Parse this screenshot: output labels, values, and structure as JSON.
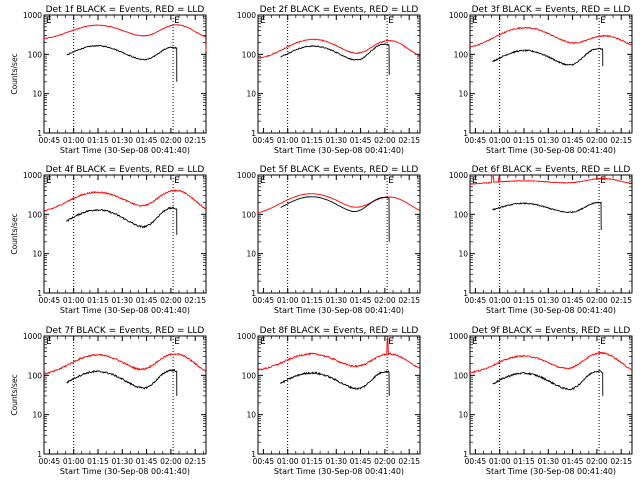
{
  "common": {
    "xlabel": "Start Time (30-Sep-08 00:41:40)",
    "ylabel": "Counts/sec",
    "xticks": [
      "00:45",
      "01:00",
      "01:15",
      "01:30",
      "01:45",
      "02:00",
      "02:15"
    ],
    "yticks": [
      "1",
      "10",
      "100",
      "1000"
    ],
    "tick_minutes": [
      3.33,
      18.33,
      33.33,
      48.33,
      63.33,
      78.33,
      93.33
    ],
    "xlim_minutes": [
      0,
      100
    ],
    "ylim": [
      1,
      1000
    ],
    "yscale": "log",
    "marker_lines_minutes": [
      18.3,
      79.7
    ],
    "edge_marker_label": "E",
    "colors": {
      "events": "#000000",
      "lld": "#ff0000"
    }
  },
  "chart_data": [
    {
      "type": "line",
      "title": "Det 1f BLACK = Events, RED = LLD",
      "show_ylabel": true,
      "series": [
        {
          "name": "LLD",
          "color": "#ff0000",
          "start": 0,
          "end": 100,
          "base": 230,
          "peaks": [
            [
              33,
              320,
              14
            ],
            [
              82,
              330,
              9
            ]
          ],
          "noise": 0.02,
          "tail": 120
        },
        {
          "name": "Events",
          "color": "#000000",
          "start": 14,
          "end": 82,
          "base": 60,
          "peaks": [
            [
              33,
              105,
              13
            ],
            [
              79,
              90,
              7
            ]
          ],
          "noise": 0.03,
          "tail": 20
        }
      ]
    },
    {
      "type": "line",
      "title": "Det 2f BLACK = Events, RED = LLD",
      "show_ylabel": false,
      "series": [
        {
          "name": "LLD",
          "color": "#ff0000",
          "start": 0,
          "end": 100,
          "base": 75,
          "peaks": [
            [
              34,
              165,
              13
            ],
            [
              81,
              150,
              9
            ]
          ],
          "noise": 0.025,
          "tail": 0
        },
        {
          "name": "Events",
          "color": "#000000",
          "start": 14,
          "end": 81,
          "base": 52,
          "peaks": [
            [
              34,
              110,
              13
            ],
            [
              78,
              130,
              7
            ]
          ],
          "noise": 0.03,
          "tail": 30
        }
      ]
    },
    {
      "type": "line",
      "title": "Det 3f BLACK = Events, RED = LLD",
      "show_ylabel": false,
      "series": [
        {
          "name": "LLD",
          "color": "#ff0000",
          "start": 0,
          "end": 100,
          "base": 135,
          "peaks": [
            [
              34,
              340,
              14
            ],
            [
              83,
              160,
              10
            ]
          ],
          "noise": 0.035,
          "tail": 0
        },
        {
          "name": "Events",
          "color": "#000000",
          "start": 14,
          "end": 82,
          "base": 40,
          "peaks": [
            [
              34,
              85,
              13
            ],
            [
              79,
              100,
              7
            ]
          ],
          "noise": 0.04,
          "tail": 50
        }
      ]
    },
    {
      "type": "line",
      "title": "Det 4f BLACK = Events, RED = LLD",
      "show_ylabel": true,
      "series": [
        {
          "name": "LLD",
          "color": "#ff0000",
          "start": 0,
          "end": 100,
          "base": 105,
          "peaks": [
            [
              33,
              260,
              14
            ],
            [
              81,
              300,
              9
            ]
          ],
          "noise": 0.04,
          "tail": 0
        },
        {
          "name": "Events",
          "color": "#000000",
          "start": 14,
          "end": 82,
          "base": 35,
          "peaks": [
            [
              33,
              95,
              13
            ],
            [
              79,
              110,
              7
            ]
          ],
          "noise": 0.05,
          "tail": 30
        }
      ]
    },
    {
      "type": "line",
      "title": "Det 5f BLACK = Events, RED = LLD",
      "show_ylabel": false,
      "series": [
        {
          "name": "LLD",
          "color": "#ff0000",
          "start": 0,
          "end": 100,
          "base": 95,
          "peaks": [
            [
              33,
              240,
              14
            ],
            [
              81,
              180,
              10
            ]
          ],
          "noise": 0.01,
          "tail": 0
        },
        {
          "name": "Events",
          "color": "#000000",
          "start": 14,
          "end": 81,
          "base": 80,
          "peaks": [
            [
              33,
              200,
              13
            ],
            [
              78,
              190,
              8
            ]
          ],
          "noise": 0.01,
          "tail": 20
        }
      ]
    },
    {
      "type": "line",
      "title": "Det 6f BLACK = Events, RED = LLD",
      "show_ylabel": false,
      "series": [
        {
          "name": "LLD",
          "color": "#ff0000",
          "start": 0,
          "end": 100,
          "base": 560,
          "peaks": [
            [
              33,
              150,
              18
            ],
            [
              82,
              250,
              10
            ]
          ],
          "noise": 0.02,
          "tail": 0,
          "spikes": [
            [
              14,
              3000
            ],
            [
              18,
              900
            ]
          ]
        },
        {
          "name": "Events",
          "color": "#000000",
          "start": 14,
          "end": 81,
          "base": 100,
          "peaks": [
            [
              33,
              90,
              13
            ],
            [
              79,
              100,
              7
            ]
          ],
          "noise": 0.03,
          "tail": 40
        }
      ]
    },
    {
      "type": "line",
      "title": "Det 7f BLACK = Events, RED = LLD",
      "show_ylabel": true,
      "series": [
        {
          "name": "LLD",
          "color": "#ff0000",
          "start": 0,
          "end": 100,
          "base": 100,
          "peaks": [
            [
              33,
              230,
              13
            ],
            [
              81,
              250,
              9
            ]
          ],
          "noise": 0.045,
          "tail": 0
        },
        {
          "name": "Events",
          "color": "#000000",
          "start": 14,
          "end": 82,
          "base": 35,
          "peaks": [
            [
              33,
              90,
              13
            ],
            [
              79,
              100,
              7
            ]
          ],
          "noise": 0.05,
          "tail": 30
        }
      ]
    },
    {
      "type": "line",
      "title": "Det 8f BLACK = Events, RED = LLD",
      "show_ylabel": false,
      "series": [
        {
          "name": "LLD",
          "color": "#ff0000",
          "start": 0,
          "end": 100,
          "base": 130,
          "peaks": [
            [
              33,
              220,
              13
            ],
            [
              81,
              220,
              9
            ]
          ],
          "noise": 0.045,
          "tail": 0,
          "spikes": [
            [
              80,
              900
            ]
          ]
        },
        {
          "name": "Events",
          "color": "#000000",
          "start": 14,
          "end": 81,
          "base": 35,
          "peaks": [
            [
              33,
              80,
              13
            ],
            [
              79,
              90,
              7
            ]
          ],
          "noise": 0.05,
          "tail": 30
        }
      ]
    },
    {
      "type": "line",
      "title": "Det 9f BLACK = Events, RED = LLD",
      "show_ylabel": false,
      "series": [
        {
          "name": "LLD",
          "color": "#ff0000",
          "start": 0,
          "end": 100,
          "base": 110,
          "peaks": [
            [
              33,
              200,
              13
            ],
            [
              81,
              260,
              9
            ]
          ],
          "noise": 0.04,
          "tail": 0
        },
        {
          "name": "Events",
          "color": "#000000",
          "start": 14,
          "end": 82,
          "base": 33,
          "peaks": [
            [
              33,
              80,
              13
            ],
            [
              79,
              95,
              7
            ]
          ],
          "noise": 0.05,
          "tail": 30
        }
      ]
    }
  ]
}
